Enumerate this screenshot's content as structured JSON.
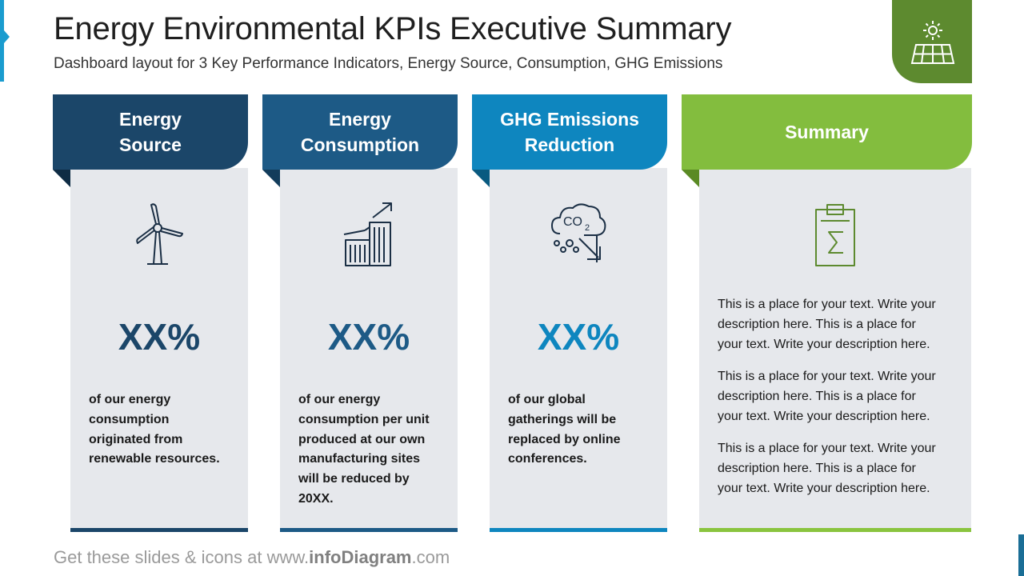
{
  "title": "Energy Environmental KPIs Executive Summary",
  "subtitle": "Dashboard layout for 3 Key Performance Indicators, Energy Source, Consumption, GHG Emissions",
  "logo_icon": "solar-panel-icon",
  "colors": {
    "card1": "#1b4669",
    "card2": "#1d5a86",
    "card3": "#0e86bf",
    "summary": "#83bd3e",
    "summary_bottom": "#8ac43f"
  },
  "cards": [
    {
      "header_line1": "Energy",
      "header_line2": "Source",
      "icon": "wind-turbine-icon",
      "value": "XX%",
      "desc_lines": [
        "of our energy",
        "consumption",
        "originated from",
        "renewable resources."
      ]
    },
    {
      "header_line1": "Energy",
      "header_line2": "Consumption",
      "icon": "factory-growth-icon",
      "value": "XX%",
      "desc_lines": [
        "of our energy",
        "consumption per unit",
        "produced at our own",
        "manufacturing sites",
        "will be reduced by",
        "20XX."
      ]
    },
    {
      "header_line1": "GHG Emissions",
      "header_line2": "Reduction",
      "icon": "co2-cloud-icon",
      "value": "XX%",
      "desc_lines": [
        "of our global",
        "gatherings will be",
        "replaced by online",
        "conferences."
      ]
    }
  ],
  "summary": {
    "header": "Summary",
    "icon": "clipboard-sigma-icon",
    "paragraphs": [
      [
        "This is a place for your text. Write your",
        "description here. This is a place for",
        "your text. Write your description here."
      ],
      [
        "This is a place for your text. Write your",
        "description here. This is a place for",
        "your text. Write your description here."
      ],
      [
        "This is a place for your text. Write your",
        "description here. This is a place for",
        "your text. Write your description here."
      ]
    ]
  },
  "footer": {
    "prefix": "Get these slides & icons at www.",
    "brand": "infoDiagram",
    "suffix": ".com"
  }
}
